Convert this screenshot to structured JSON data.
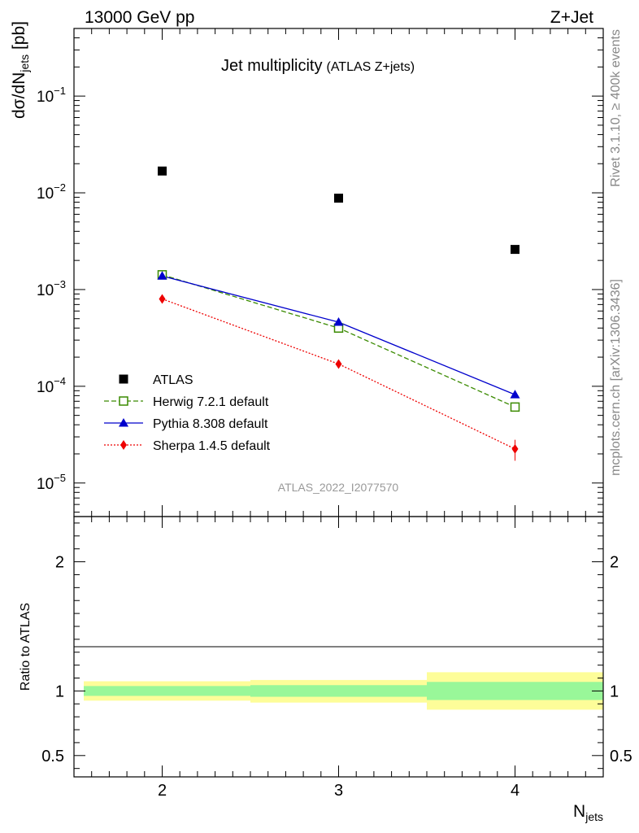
{
  "header": {
    "left": "13000 GeV pp",
    "right": "Z+Jet"
  },
  "side_text": {
    "top": "Rivet 3.1.10, ≥ 400k events",
    "bottom": "mcplots.cern.ch [arXiv:1306.3436]"
  },
  "chart_data": {
    "type": "scatter",
    "title": "Jet multiplicity",
    "subtitle": "(ATLAS Z+jets)",
    "analysis_id": "ATLAS_2022_I2077570",
    "xlabel": "N",
    "xlabel_sub": "jets",
    "ylabel": "dσ/dN",
    "ylabel_sub": "jets",
    "ylabel_unit": " [pb]",
    "yscale": "log",
    "xlim": [
      1.5,
      4.5
    ],
    "ylim": [
      4.5e-06,
      0.5
    ],
    "x_ticks": [
      2,
      3,
      4
    ],
    "x_tick_labels": [
      "2",
      "3",
      "4"
    ],
    "y_ticks": [
      1e-05,
      0.0001,
      0.001,
      0.01,
      0.1
    ],
    "y_tick_labels": [
      [
        "10",
        "−5"
      ],
      [
        "10",
        "−4"
      ],
      [
        "10",
        "−3"
      ],
      [
        "10",
        "−2"
      ],
      [
        "10",
        "−1"
      ]
    ],
    "x": [
      2,
      3,
      4
    ],
    "series": [
      {
        "name": "ATLAS",
        "values": [
          0.0168,
          0.0088,
          0.0026
        ],
        "color": "#000000",
        "marker": "square-filled",
        "line": "none",
        "errors": [
          0,
          0,
          0
        ]
      },
      {
        "name": "Herwig 7.2.1 default",
        "values": [
          0.00142,
          0.0004,
          6.1e-05
        ],
        "color": "#3a8a00",
        "marker": "square-open",
        "line": "dashed",
        "errors": [
          0,
          0,
          0
        ]
      },
      {
        "name": "Pythia 8.308 default",
        "values": [
          0.00138,
          0.00046,
          8.2e-05
        ],
        "color": "#0000cc",
        "marker": "triangle",
        "line": "solid",
        "errors": [
          0,
          0,
          0
        ]
      },
      {
        "name": "Sherpa 1.4.5 default",
        "values": [
          0.0008,
          0.00017,
          2.25e-05
        ],
        "color": "#ee0000",
        "marker": "diamond",
        "line": "dotted",
        "errors": [
          0,
          0,
          5.5e-06
        ]
      }
    ],
    "ratio": {
      "ylabel": "Ratio to ATLAS",
      "ylim": [
        0.335,
        2.35
      ],
      "y_ticks": [
        0.5,
        1,
        2
      ],
      "y_tick_labels": [
        "0.5",
        "1",
        "2"
      ],
      "bins": [
        {
          "lo": 1.5,
          "hi": 2.5,
          "inner": [
            0.962,
            1.038
          ],
          "outer": [
            0.925,
            1.075
          ]
        },
        {
          "lo": 2.5,
          "hi": 3.5,
          "inner": [
            0.955,
            1.045
          ],
          "outer": [
            0.91,
            1.085
          ]
        },
        {
          "lo": 3.5,
          "hi": 4.5,
          "inner": [
            0.93,
            1.07
          ],
          "outer": [
            0.855,
            1.145
          ]
        }
      ],
      "inner_color": "#99f799",
      "outer_color": "#fdfd99"
    }
  }
}
